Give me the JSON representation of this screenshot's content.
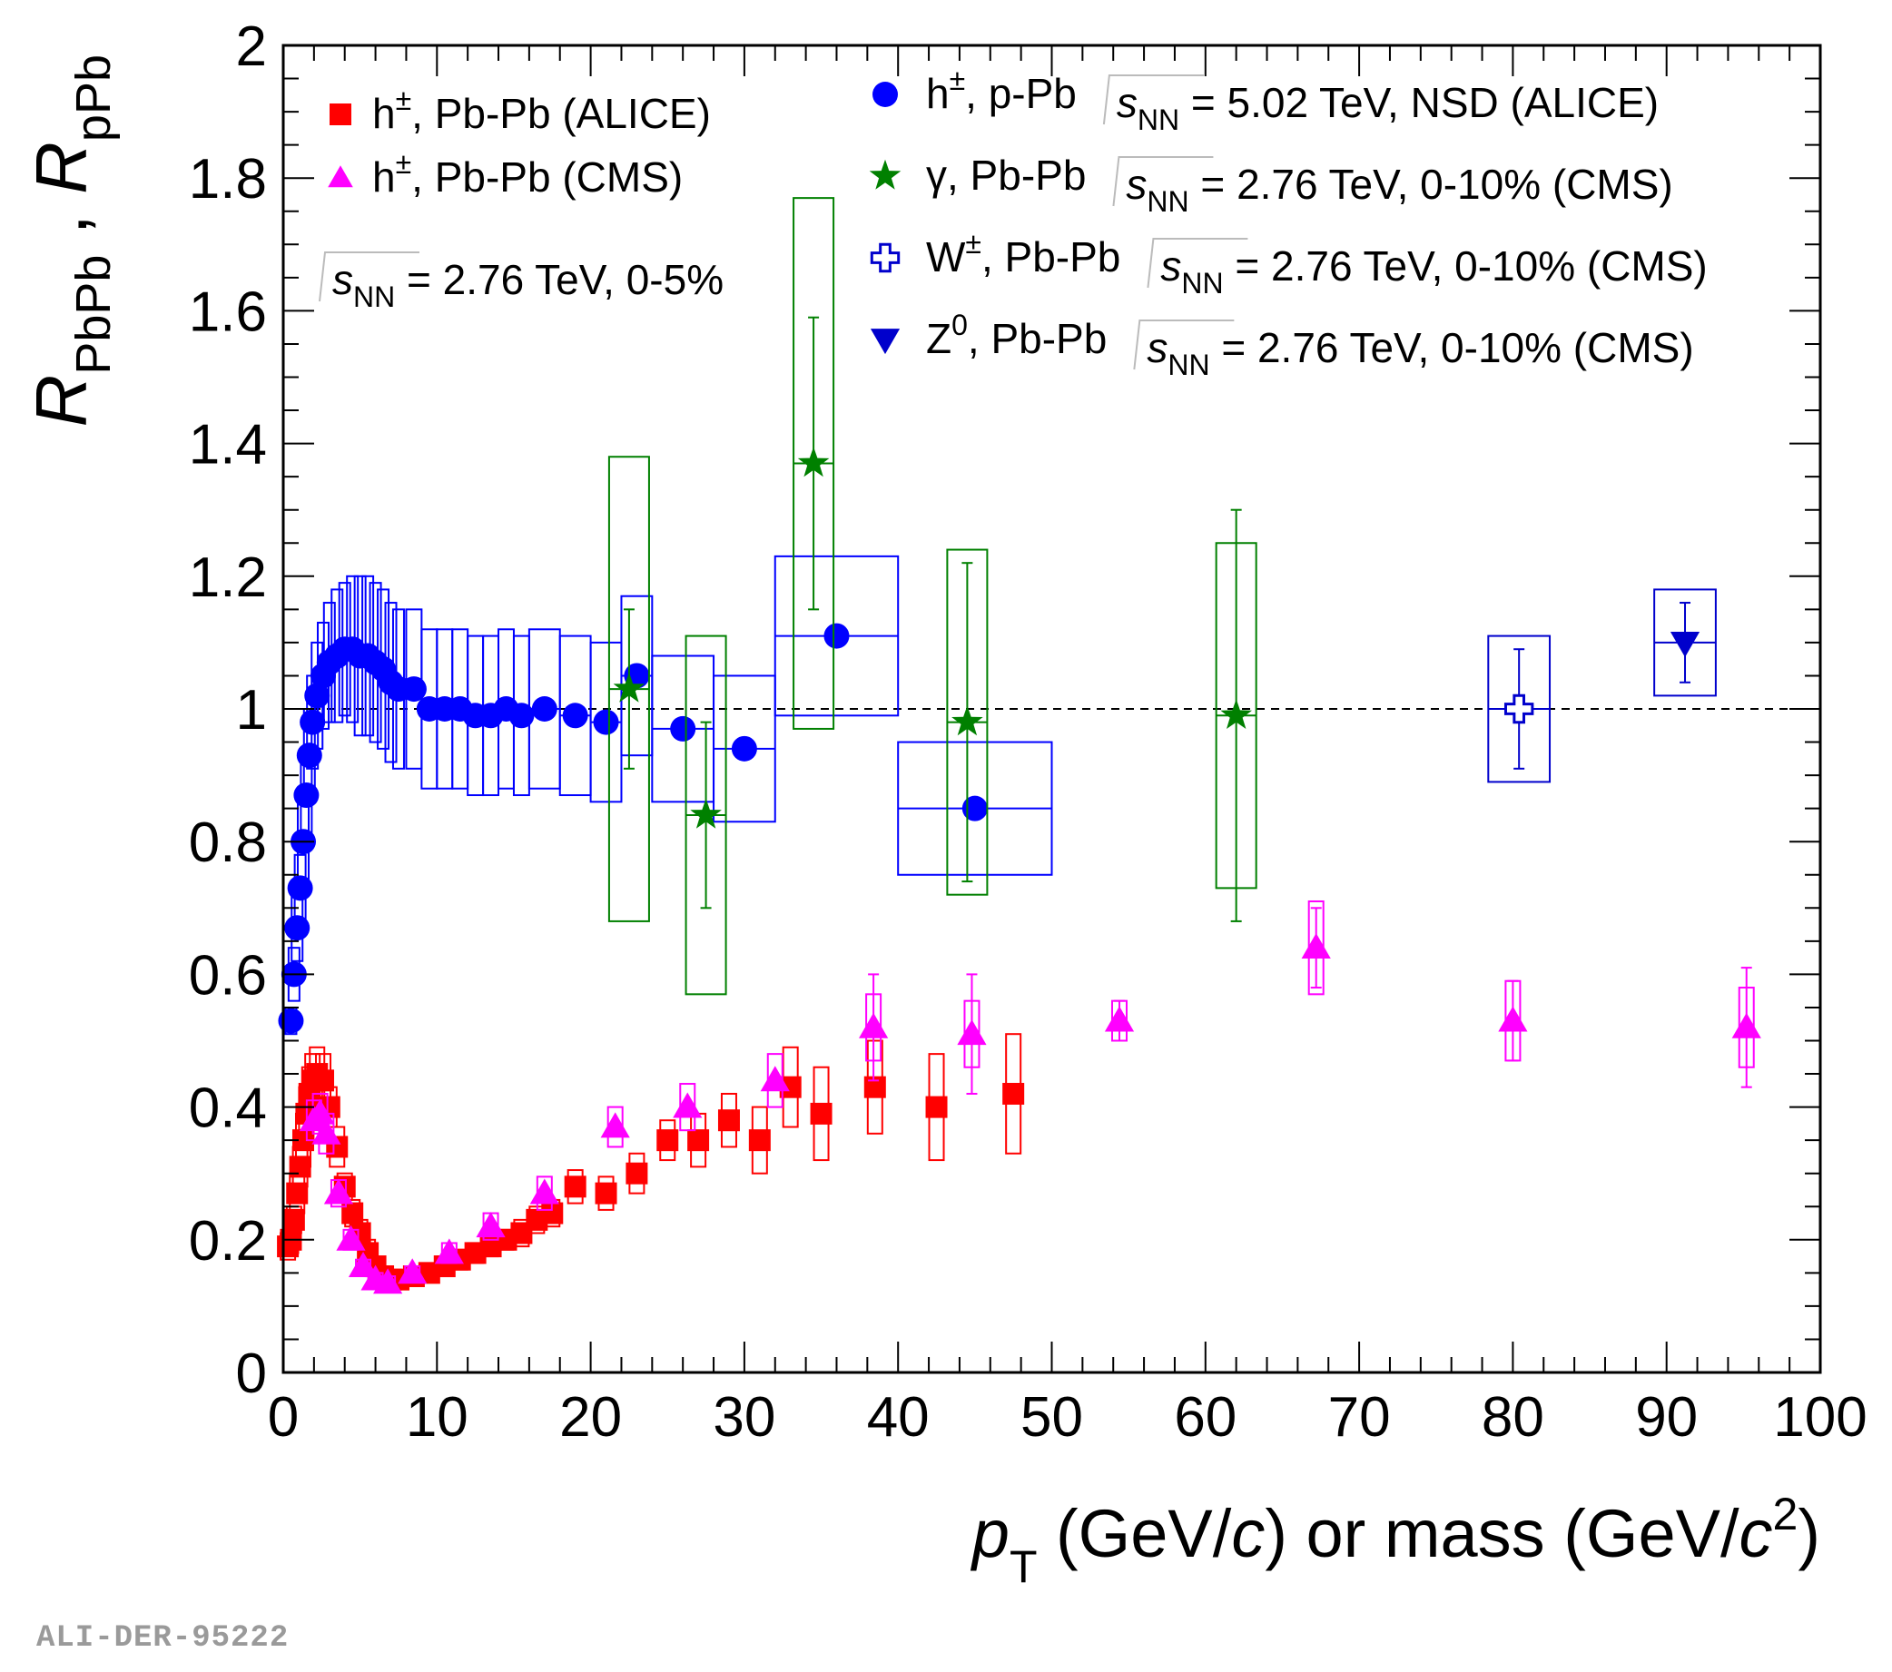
{
  "chart_data": {
    "type": "scatter",
    "title": "",
    "xlabel": {
      "main": "p",
      "sub": "T",
      "unit1": " (GeV/",
      "c1": "c",
      "mid": ") or mass (GeV/",
      "c2": "c",
      "sup": "2",
      "end": ")"
    },
    "ylabel": {
      "r1": "R",
      "sub1": "PbPb",
      "sep": " , ",
      "r2": "R",
      "sub2": "pPb"
    },
    "xlim": [
      0,
      100
    ],
    "ylim": [
      0,
      2
    ],
    "x_ticks": [
      0,
      10,
      20,
      30,
      40,
      50,
      60,
      70,
      80,
      90,
      100
    ],
    "x_tick_labels": [
      "0",
      "10",
      "20",
      "30",
      "40",
      "50",
      "60",
      "70",
      "80",
      "90",
      "100"
    ],
    "y_ticks": [
      0,
      0.2,
      0.4,
      0.6,
      0.8,
      1,
      1.2,
      1.4,
      1.6,
      1.8,
      2
    ],
    "y_tick_labels": [
      "0",
      "0.2",
      "0.4",
      "0.6",
      "0.8",
      "1",
      "1.2",
      "1.4",
      "1.6",
      "1.8",
      "2"
    ],
    "reference_line": 1,
    "grid": false,
    "legend_left": {
      "entries": [
        {
          "label": "h±, Pb-Pb (ALICE)",
          "particle": "h",
          "sup": "±",
          "rest": ", Pb-Pb (ALICE)",
          "marker": "square",
          "color": "#ff0000"
        },
        {
          "label": "h±, Pb-Pb (CMS)",
          "particle": "h",
          "sup": "±",
          "rest": ", Pb-Pb (CMS)",
          "marker": "triangle-up",
          "color": "#ff00ff"
        }
      ],
      "energy_note": {
        "s": "s",
        "sub": "NN",
        "rest": " = 2.76 TeV, 0-5%"
      }
    },
    "legend_right": [
      {
        "particle": "h",
        "sup": "±",
        "system": ", p-Pb",
        "s": "s",
        "sub": "NN",
        "rest": " = 5.02 TeV, NSD (ALICE)",
        "marker": "circle",
        "color": "#0000ff"
      },
      {
        "particle": "γ",
        "sup": "",
        "system": ", Pb-Pb",
        "s": "s",
        "sub": "NN",
        "rest": " = 2.76 TeV, 0-10% (CMS)",
        "marker": "star",
        "color": "#008000"
      },
      {
        "particle": "W",
        "sup": "±",
        "system": ", Pb-Pb",
        "s": "s",
        "sub": "NN",
        "rest": " = 2.76 TeV, 0-10% (CMS)",
        "marker": "open-cross",
        "color": "#0000cc"
      },
      {
        "particle": "Z",
        "sup": "0",
        "system": ", Pb-Pb",
        "s": "s",
        "sub": "NN",
        "rest": " = 2.76 TeV, 0-10% (CMS)",
        "marker": "triangle-down",
        "color": "#0000cc"
      }
    ],
    "series": [
      {
        "name": "h±, p-Pb (ALICE)",
        "marker": "circle",
        "color": "#0000ff",
        "points": [
          {
            "x": 0.5,
            "y": 0.53,
            "ex": 0.0,
            "sys": 0.02
          },
          {
            "x": 0.7,
            "y": 0.6,
            "ex": 0.05,
            "sys": 0.04
          },
          {
            "x": 0.9,
            "y": 0.67,
            "ex": 0.05,
            "sys": 0.05
          },
          {
            "x": 1.1,
            "y": 0.73,
            "ex": 0.05,
            "sys": 0.05
          },
          {
            "x": 1.3,
            "y": 0.8,
            "ex": 0.05,
            "sys": 0.06
          },
          {
            "x": 1.5,
            "y": 0.87,
            "ex": 0.05,
            "sys": 0.06
          },
          {
            "x": 1.7,
            "y": 0.93,
            "ex": 0.05,
            "sys": 0.07
          },
          {
            "x": 1.9,
            "y": 0.98,
            "ex": 0.05,
            "sys": 0.07
          },
          {
            "x": 2.2,
            "y": 1.02,
            "ex": 0.1,
            "sys": 0.08
          },
          {
            "x": 2.6,
            "y": 1.05,
            "ex": 0.1,
            "sys": 0.08
          },
          {
            "x": 3.0,
            "y": 1.07,
            "ex": 0.2,
            "sys": 0.09
          },
          {
            "x": 3.5,
            "y": 1.08,
            "ex": 0.25,
            "sys": 0.1
          },
          {
            "x": 4.0,
            "y": 1.09,
            "ex": 0.25,
            "sys": 0.1
          },
          {
            "x": 4.5,
            "y": 1.09,
            "ex": 0.25,
            "sys": 0.11
          },
          {
            "x": 5.0,
            "y": 1.08,
            "ex": 0.25,
            "sys": 0.12
          },
          {
            "x": 5.5,
            "y": 1.08,
            "ex": 0.25,
            "sys": 0.12
          },
          {
            "x": 6.0,
            "y": 1.07,
            "ex": 0.25,
            "sys": 0.12
          },
          {
            "x": 6.5,
            "y": 1.06,
            "ex": 0.25,
            "sys": 0.12
          },
          {
            "x": 7.0,
            "y": 1.04,
            "ex": 0.25,
            "sys": 0.12
          },
          {
            "x": 7.5,
            "y": 1.03,
            "ex": 0.25,
            "sys": 0.12
          },
          {
            "x": 8.5,
            "y": 1.03,
            "ex": 0.5,
            "sys": 0.12
          },
          {
            "x": 9.5,
            "y": 1.0,
            "ex": 0.5,
            "sys": 0.12
          },
          {
            "x": 10.5,
            "y": 1.0,
            "ex": 0.5,
            "sys": 0.12
          },
          {
            "x": 11.5,
            "y": 1.0,
            "ex": 0.5,
            "sys": 0.12
          },
          {
            "x": 12.5,
            "y": 0.99,
            "ex": 0.5,
            "sys": 0.12
          },
          {
            "x": 13.5,
            "y": 0.99,
            "ex": 0.5,
            "sys": 0.12
          },
          {
            "x": 14.5,
            "y": 1.0,
            "ex": 0.5,
            "sys": 0.12
          },
          {
            "x": 15.5,
            "y": 0.99,
            "ex": 0.5,
            "sys": 0.12
          },
          {
            "x": 17.0,
            "y": 1.0,
            "ex": 1.0,
            "sys": 0.12
          },
          {
            "x": 19.0,
            "y": 0.99,
            "ex": 1.0,
            "sys": 0.12
          },
          {
            "x": 21.0,
            "y": 0.98,
            "ex": 1.0,
            "sys": 0.12
          },
          {
            "x": 23.0,
            "y": 1.05,
            "ex": 1.0,
            "sys": 0.12
          },
          {
            "x": 26.0,
            "y": 0.97,
            "ex": 2.0,
            "sys": 0.11
          },
          {
            "x": 30.0,
            "y": 0.94,
            "ex": 2.0,
            "sys": 0.11
          },
          {
            "x": 36.0,
            "y": 1.11,
            "ex": 4.0,
            "sys": 0.12
          },
          {
            "x": 45.0,
            "y": 0.85,
            "ex": 5.0,
            "sys": 0.1
          }
        ]
      },
      {
        "name": "γ, Pb-Pb (CMS)",
        "marker": "star",
        "color": "#008000",
        "points": [
          {
            "x": 22.5,
            "y": 1.03,
            "ex": 1.3,
            "sys": 0.35,
            "stat": 0.12
          },
          {
            "x": 27.5,
            "y": 0.84,
            "ex": 1.3,
            "sys": 0.27,
            "stat": 0.14
          },
          {
            "x": 34.5,
            "y": 1.37,
            "ex": 1.3,
            "sys": 0.4,
            "stat": 0.22
          },
          {
            "x": 44.5,
            "y": 0.98,
            "ex": 1.3,
            "sys": 0.26,
            "stat": 0.24
          },
          {
            "x": 62.0,
            "y": 0.99,
            "ex": 1.3,
            "sys": 0.26,
            "stat": 0.31
          }
        ]
      },
      {
        "name": "W±, Pb-Pb (CMS)",
        "marker": "open-cross",
        "color": "#0000cc",
        "points": [
          {
            "x": 80.4,
            "y": 1.0,
            "ex": 2.0,
            "sys": 0.11,
            "stat": 0.09
          }
        ]
      },
      {
        "name": "Z0, Pb-Pb (CMS)",
        "marker": "triangle-down",
        "color": "#0000cc",
        "points": [
          {
            "x": 91.2,
            "y": 1.1,
            "ex": 2.0,
            "sys": 0.08,
            "stat": 0.06
          }
        ]
      },
      {
        "name": "h±, Pb-Pb (ALICE)",
        "marker": "square",
        "color": "#ff0000",
        "points": [
          {
            "x": 0.3,
            "y": 0.19,
            "sys": 0.02
          },
          {
            "x": 0.5,
            "y": 0.2,
            "sys": 0.02
          },
          {
            "x": 0.7,
            "y": 0.23,
            "sys": 0.02
          },
          {
            "x": 0.9,
            "y": 0.27,
            "sys": 0.03
          },
          {
            "x": 1.1,
            "y": 0.31,
            "sys": 0.03
          },
          {
            "x": 1.3,
            "y": 0.35,
            "sys": 0.04
          },
          {
            "x": 1.5,
            "y": 0.39,
            "sys": 0.04
          },
          {
            "x": 1.7,
            "y": 0.42,
            "sys": 0.04
          },
          {
            "x": 1.9,
            "y": 0.44,
            "sys": 0.04
          },
          {
            "x": 2.2,
            "y": 0.45,
            "sys": 0.04
          },
          {
            "x": 2.6,
            "y": 0.44,
            "sys": 0.04
          },
          {
            "x": 3.0,
            "y": 0.4,
            "sys": 0.03
          },
          {
            "x": 3.5,
            "y": 0.34,
            "sys": 0.03
          },
          {
            "x": 4.0,
            "y": 0.28,
            "sys": 0.02
          },
          {
            "x": 4.5,
            "y": 0.24,
            "sys": 0.02
          },
          {
            "x": 5.0,
            "y": 0.21,
            "sys": 0.02
          },
          {
            "x": 5.5,
            "y": 0.18,
            "sys": 0.02
          },
          {
            "x": 6.0,
            "y": 0.16,
            "sys": 0.01
          },
          {
            "x": 6.5,
            "y": 0.145,
            "sys": 0.01
          },
          {
            "x": 7.0,
            "y": 0.14,
            "sys": 0.01
          },
          {
            "x": 7.5,
            "y": 0.14,
            "sys": 0.01
          },
          {
            "x": 8.5,
            "y": 0.145,
            "sys": 0.01
          },
          {
            "x": 9.5,
            "y": 0.15,
            "sys": 0.01
          },
          {
            "x": 10.5,
            "y": 0.16,
            "sys": 0.015
          },
          {
            "x": 11.5,
            "y": 0.17,
            "sys": 0.015
          },
          {
            "x": 12.5,
            "y": 0.18,
            "sys": 0.015
          },
          {
            "x": 13.5,
            "y": 0.19,
            "sys": 0.015
          },
          {
            "x": 14.5,
            "y": 0.2,
            "sys": 0.015
          },
          {
            "x": 15.5,
            "y": 0.21,
            "sys": 0.02
          },
          {
            "x": 16.5,
            "y": 0.23,
            "sys": 0.02
          },
          {
            "x": 17.5,
            "y": 0.24,
            "sys": 0.02
          },
          {
            "x": 19.0,
            "y": 0.28,
            "sys": 0.025
          },
          {
            "x": 21.0,
            "y": 0.27,
            "sys": 0.025
          },
          {
            "x": 23.0,
            "y": 0.3,
            "sys": 0.03
          },
          {
            "x": 25.0,
            "y": 0.35,
            "sys": 0.03
          },
          {
            "x": 27.0,
            "y": 0.35,
            "sys": 0.04
          },
          {
            "x": 29.0,
            "y": 0.38,
            "sys": 0.04
          },
          {
            "x": 31.0,
            "y": 0.35,
            "sys": 0.05
          },
          {
            "x": 33.0,
            "y": 0.43,
            "sys": 0.06
          },
          {
            "x": 35.0,
            "y": 0.39,
            "sys": 0.07
          },
          {
            "x": 38.5,
            "y": 0.43,
            "sys": 0.07
          },
          {
            "x": 42.5,
            "y": 0.4,
            "sys": 0.08
          },
          {
            "x": 47.5,
            "y": 0.42,
            "sys": 0.09
          }
        ]
      },
      {
        "name": "h±, Pb-Pb (CMS)",
        "marker": "triangle-up",
        "color": "#ff00ff",
        "points": [
          {
            "x": 2.0,
            "y": 0.38,
            "sys": 0.03
          },
          {
            "x": 2.4,
            "y": 0.39,
            "sys": 0.03
          },
          {
            "x": 2.8,
            "y": 0.36,
            "sys": 0.03
          },
          {
            "x": 3.6,
            "y": 0.27,
            "sys": 0.02
          },
          {
            "x": 4.4,
            "y": 0.2,
            "sys": 0.015
          },
          {
            "x": 5.2,
            "y": 0.16,
            "sys": 0.01
          },
          {
            "x": 6.0,
            "y": 0.14,
            "sys": 0.01
          },
          {
            "x": 6.8,
            "y": 0.135,
            "sys": 0.01
          },
          {
            "x": 8.4,
            "y": 0.15,
            "sys": 0.01
          },
          {
            "x": 10.8,
            "y": 0.18,
            "sys": 0.015
          },
          {
            "x": 13.5,
            "y": 0.22,
            "sys": 0.02
          },
          {
            "x": 17.0,
            "y": 0.27,
            "sys": 0.025
          },
          {
            "x": 21.6,
            "y": 0.37,
            "sys": 0.03
          },
          {
            "x": 26.3,
            "y": 0.4,
            "sys": 0.035
          },
          {
            "x": 32.0,
            "y": 0.44,
            "sys": 0.04
          },
          {
            "x": 38.4,
            "y": 0.52,
            "sys": 0.05,
            "stat": 0.08
          },
          {
            "x": 44.8,
            "y": 0.51,
            "sys": 0.05,
            "stat": 0.09
          },
          {
            "x": 54.4,
            "y": 0.53,
            "sys": 0.03,
            "stat": 0.03
          },
          {
            "x": 67.2,
            "y": 0.64,
            "sys": 0.07,
            "stat": 0.06
          },
          {
            "x": 80.0,
            "y": 0.53,
            "sys": 0.06,
            "stat": 0.06
          },
          {
            "x": 95.2,
            "y": 0.52,
            "sys": 0.06,
            "stat": 0.09
          }
        ]
      }
    ]
  },
  "footer": {
    "tag": "ALI-DER-95222"
  }
}
